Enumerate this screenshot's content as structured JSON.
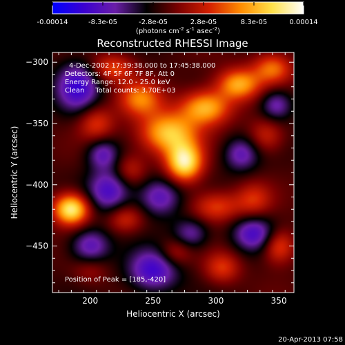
{
  "chart_data": {
    "type": "heatmap",
    "title": "Reconstructed RHESSI Image",
    "xlabel": "Heliocentric X (arcsec)",
    "ylabel": "Heliocentric Y (arcsec)",
    "xlim": [
      170,
      362
    ],
    "ylim": [
      -488,
      -292
    ],
    "x_ticks": [
      200,
      250,
      300,
      350
    ],
    "y_ticks": [
      -300,
      -350,
      -400,
      -450
    ],
    "colorbar": {
      "range": [
        -0.00014,
        0.00014
      ],
      "tick_labels": [
        "-0.00014",
        "-8.3e-05",
        "-2.8e-05",
        "2.8e-05",
        "8.3e-05",
        "0.00014"
      ],
      "unit_base": "(photons cm",
      "unit_e1": "-2",
      "unit_mid": " s",
      "unit_e2": "-1",
      "unit_end": " asec",
      "unit_e3": "-2",
      "unit_close": ")"
    },
    "info_lines": [
      "4-Dec-2002 17:39:38.000 to 17:45:38.000",
      "Detectors: 4F 5F 6F 7F 8F, Att 0",
      "Energy Range: 12.0 - 25.0 keV",
      "Clean     Total counts: 3.70E+03"
    ],
    "peak_label": "Position of Peak = [185,-420]",
    "peak": {
      "x": 185,
      "y": -420
    },
    "sources": [
      {
        "x": 185,
        "y": -420,
        "v": 1.0,
        "sx": 10,
        "sy": 9
      },
      {
        "x": 275,
        "y": -382,
        "v": 0.95,
        "sx": 10,
        "sy": 11
      },
      {
        "x": 262,
        "y": -358,
        "v": 0.8,
        "sx": 16,
        "sy": 12
      },
      {
        "x": 292,
        "y": -337,
        "v": 0.75,
        "sx": 14,
        "sy": 10
      },
      {
        "x": 318,
        "y": -318,
        "v": 0.7,
        "sx": 12,
        "sy": 9
      },
      {
        "x": 240,
        "y": -330,
        "v": 0.55,
        "sx": 12,
        "sy": 10
      },
      {
        "x": 218,
        "y": -305,
        "v": 0.45,
        "sx": 12,
        "sy": 8
      },
      {
        "x": 345,
        "y": -305,
        "v": 0.55,
        "sx": 11,
        "sy": 9
      },
      {
        "x": 340,
        "y": -360,
        "v": 0.35,
        "sx": 10,
        "sy": 10
      },
      {
        "x": 205,
        "y": -350,
        "v": 0.4,
        "sx": 10,
        "sy": 10
      },
      {
        "x": 232,
        "y": -388,
        "v": 0.3,
        "sx": 9,
        "sy": 9
      },
      {
        "x": 228,
        "y": -428,
        "v": 0.35,
        "sx": 10,
        "sy": 8
      },
      {
        "x": 300,
        "y": -418,
        "v": 0.45,
        "sx": 14,
        "sy": 9
      },
      {
        "x": 330,
        "y": -412,
        "v": 0.35,
        "sx": 10,
        "sy": 10
      },
      {
        "x": 350,
        "y": -450,
        "v": 0.5,
        "sx": 9,
        "sy": 10
      },
      {
        "x": 268,
        "y": -455,
        "v": 0.3,
        "sx": 9,
        "sy": 8
      },
      {
        "x": 305,
        "y": -468,
        "v": 0.4,
        "sx": 10,
        "sy": 9
      },
      {
        "x": 200,
        "y": -470,
        "v": 0.2,
        "sx": 10,
        "sy": 8
      },
      {
        "x": 215,
        "y": -405,
        "v": -0.55,
        "sx": 12,
        "sy": 12
      },
      {
        "x": 255,
        "y": -410,
        "v": -0.5,
        "sx": 12,
        "sy": 11
      },
      {
        "x": 250,
        "y": -470,
        "v": -0.6,
        "sx": 14,
        "sy": 12
      },
      {
        "x": 320,
        "y": -375,
        "v": -0.45,
        "sx": 10,
        "sy": 10
      },
      {
        "x": 190,
        "y": -320,
        "v": -0.6,
        "sx": 12,
        "sy": 14
      },
      {
        "x": 348,
        "y": -335,
        "v": -0.45,
        "sx": 9,
        "sy": 9
      },
      {
        "x": 200,
        "y": -450,
        "v": -0.5,
        "sx": 11,
        "sy": 10
      },
      {
        "x": 330,
        "y": -440,
        "v": -0.55,
        "sx": 12,
        "sy": 10
      },
      {
        "x": 280,
        "y": -440,
        "v": -0.4,
        "sx": 10,
        "sy": 9
      },
      {
        "x": 210,
        "y": -375,
        "v": -0.45,
        "sx": 9,
        "sy": 9
      }
    ],
    "colormap": [
      "#0000ff",
      "#3b00d0",
      "#6a1ea8",
      "#000000",
      "#7a0000",
      "#d42000",
      "#ff8c00",
      "#ffe14a",
      "#ffffff"
    ]
  },
  "timestamp": "20-Apr-2013 07:58"
}
